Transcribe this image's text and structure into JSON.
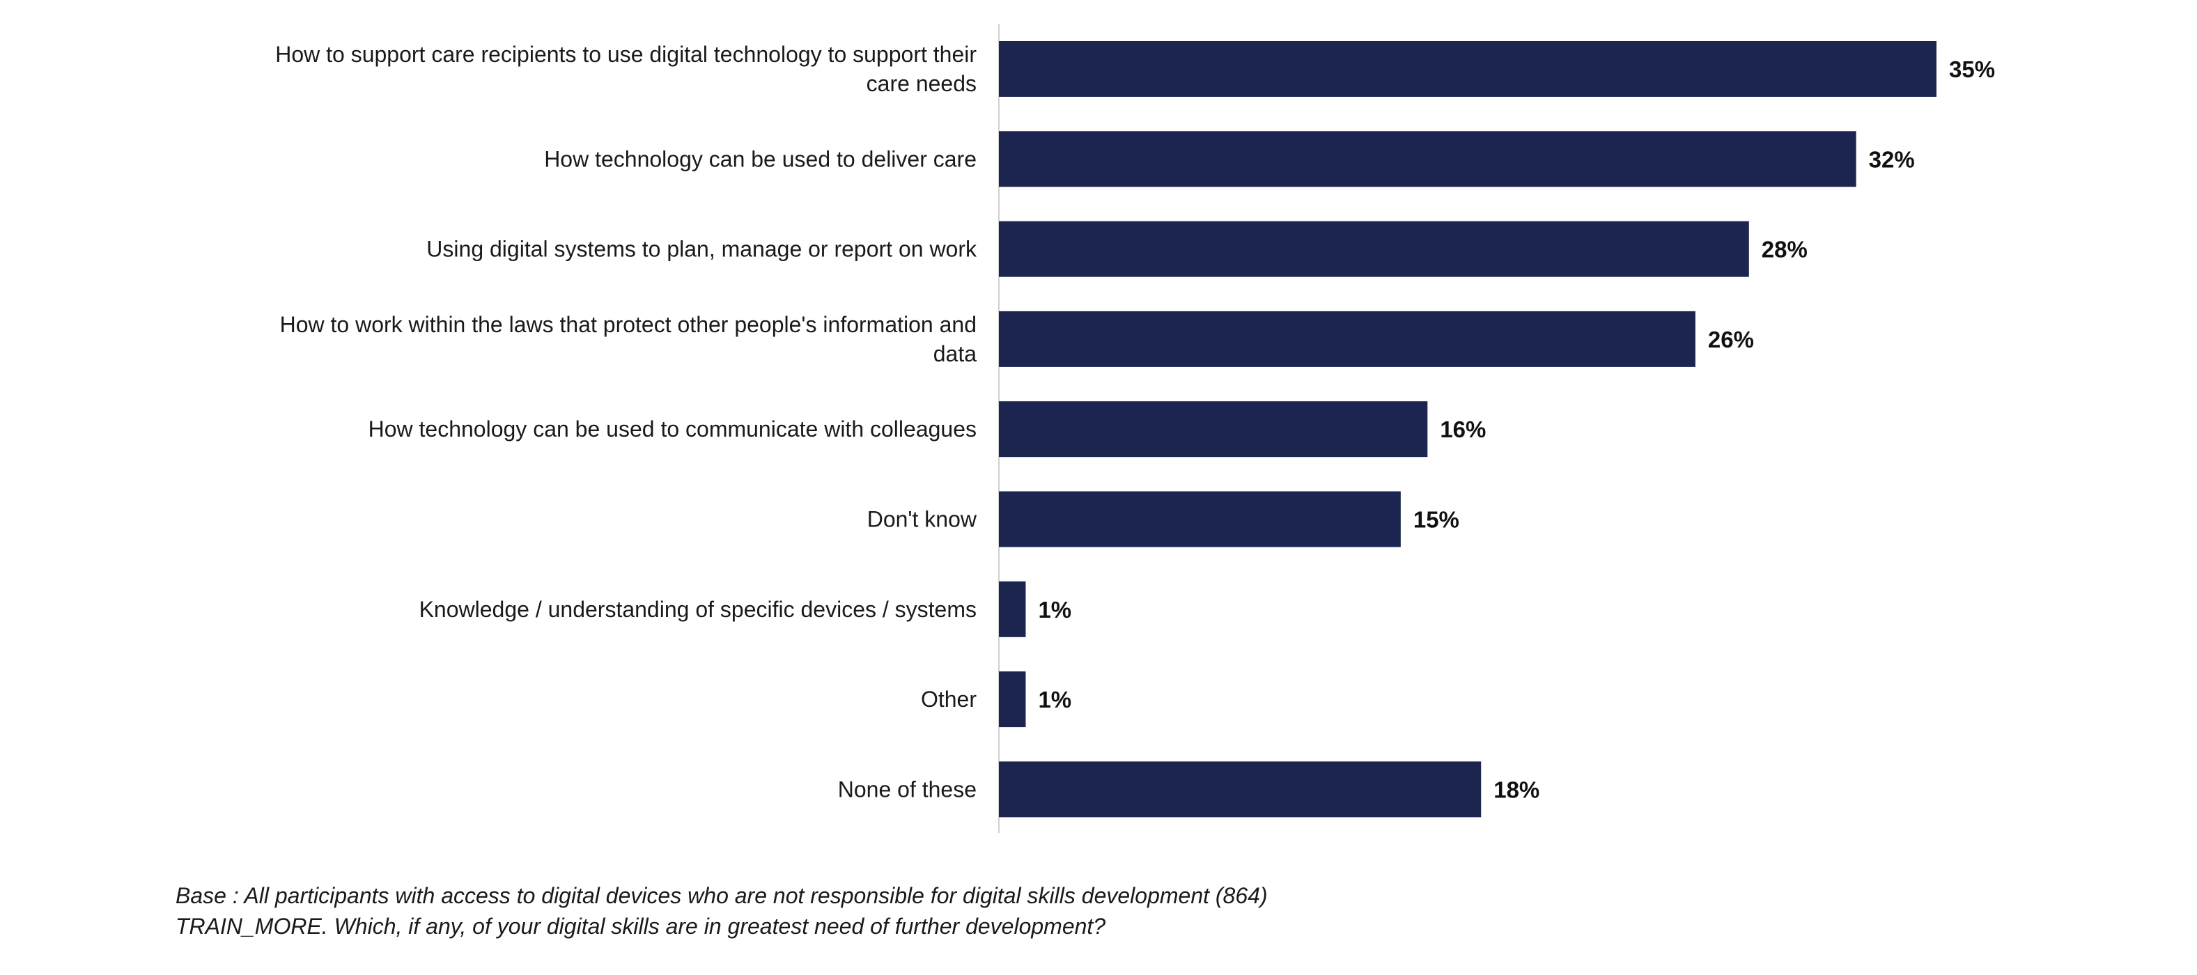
{
  "chart_data": {
    "type": "bar",
    "orientation": "horizontal",
    "categories": [
      "How to support care recipients to use digital technology to support their care needs",
      "How technology can be used to deliver care",
      "Using digital systems to plan, manage or report on work",
      "How to work within the laws that protect other people's information and data",
      "How technology can be used to communicate with colleagues",
      "Don't know",
      "Knowledge / understanding of specific devices / systems",
      "Other",
      "None of these"
    ],
    "category_lines": [
      [
        "How to support care recipients to use digital technology to support their",
        "care needs"
      ],
      [
        "How technology can be used to deliver care"
      ],
      [
        "Using digital systems to plan, manage or report on work"
      ],
      [
        "How to work within the laws that protect other people's information and",
        "data"
      ],
      [
        "How technology can be used to communicate with colleagues"
      ],
      [
        "Don't know"
      ],
      [
        "Knowledge / understanding of specific devices / systems"
      ],
      [
        "Other"
      ],
      [
        "None of these"
      ]
    ],
    "values": [
      35,
      32,
      28,
      26,
      16,
      15,
      1,
      1,
      18
    ],
    "value_labels": [
      "35%",
      "32%",
      "28%",
      "26%",
      "16%",
      "15%",
      "1%",
      "1%",
      "18%"
    ],
    "unit": "%",
    "xlim": [
      0,
      35
    ],
    "title": "",
    "xlabel": "",
    "ylabel": "",
    "grid": false,
    "legend": "none"
  },
  "colors": {
    "bar": "#1b2550",
    "axis": "#d0d0d0",
    "text": "#1a1a1a"
  },
  "footnotes": {
    "base": "Base : All participants with access to digital devices who are not responsible for digital skills development (864)",
    "question": "TRAIN_MORE. Which, if any, of your digital skills are in greatest need of further development?"
  }
}
